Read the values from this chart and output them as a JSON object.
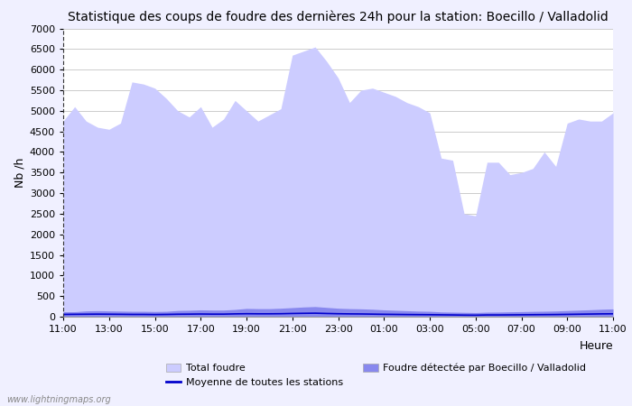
{
  "title": "Statistique des coups de foudre des dernières 24h pour la station: Boecillo / Valladolid",
  "xlabel": "Heure",
  "ylabel": "Nb /h",
  "watermark": "www.lightningmaps.org",
  "ylim": [
    0,
    7000
  ],
  "yticks": [
    0,
    500,
    1000,
    1500,
    2000,
    2500,
    3000,
    3500,
    4000,
    4500,
    5000,
    5500,
    6000,
    6500,
    7000
  ],
  "xtick_labels": [
    "11:00",
    "13:00",
    "15:00",
    "17:00",
    "19:00",
    "21:00",
    "23:00",
    "01:00",
    "03:00",
    "05:00",
    "07:00",
    "09:00",
    "11:00"
  ],
  "total_foudre": [
    4750,
    5100,
    4750,
    4600,
    4550,
    4700,
    5700,
    5650,
    5550,
    5300,
    5000,
    4850,
    5100,
    4600,
    4800,
    5250,
    5000,
    4750,
    4900,
    5050,
    6350,
    6450,
    6550,
    6200,
    5800,
    5200,
    5500,
    5550,
    5450,
    5350,
    5200,
    5100,
    4950,
    3850,
    3800,
    2500,
    2450,
    3750,
    3750,
    3450,
    3500,
    3600,
    4000,
    3650,
    4700,
    4800,
    4750,
    4750,
    4950
  ],
  "foudre_station": [
    120,
    120,
    140,
    145,
    140,
    135,
    130,
    130,
    125,
    130,
    150,
    155,
    165,
    160,
    160,
    175,
    200,
    195,
    195,
    205,
    220,
    235,
    245,
    225,
    205,
    195,
    190,
    180,
    165,
    155,
    145,
    135,
    130,
    115,
    110,
    105,
    100,
    110,
    112,
    118,
    122,
    128,
    132,
    138,
    148,
    158,
    168,
    180,
    188
  ],
  "moyenne_stations": [
    55,
    58,
    60,
    62,
    60,
    58,
    55,
    55,
    52,
    55,
    60,
    62,
    65,
    62,
    62,
    68,
    72,
    70,
    70,
    72,
    78,
    82,
    85,
    78,
    72,
    68,
    66,
    62,
    58,
    55,
    52,
    50,
    48,
    45,
    42,
    38,
    36,
    42,
    42,
    44,
    46,
    48,
    50,
    52,
    56,
    60,
    64,
    68,
    70
  ],
  "total_foudre_color": "#ccccff",
  "foudre_station_color": "#8888ee",
  "moyenne_color": "#0000cc",
  "bg_color": "#f0f0ff",
  "plot_bg_color": "#ffffff",
  "grid_color": "#cccccc",
  "title_fontsize": 10,
  "legend_entries": [
    "Total foudre",
    "Moyenne de toutes les stations",
    "Foudre détectée par Boecillo / Valladolid"
  ]
}
